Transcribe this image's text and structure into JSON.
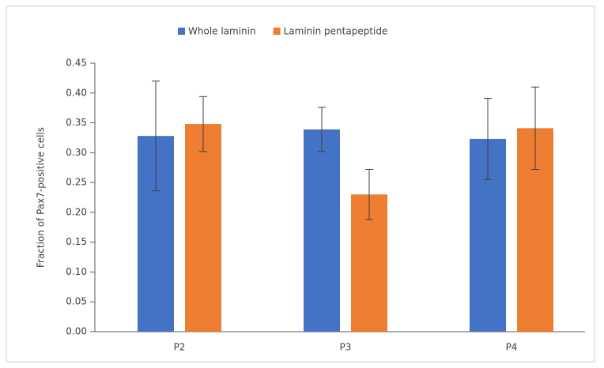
{
  "chart_data": {
    "type": "bar",
    "categories": [
      "P2",
      "P3",
      "P4"
    ],
    "series": [
      {
        "name": "Whole laminin",
        "color": "#4472c4",
        "values": [
          0.328,
          0.339,
          0.323
        ],
        "errors": [
          0.092,
          0.037,
          0.068
        ]
      },
      {
        "name": "Laminin pentapeptide",
        "color": "#ed7d31",
        "values": [
          0.348,
          0.23,
          0.341
        ],
        "errors": [
          0.046,
          0.042,
          0.069
        ]
      }
    ],
    "y_label": "Fraction of Pax7-positive cells",
    "ylim": [
      0,
      0.45
    ],
    "yticks": [
      {
        "value": 0,
        "label": "0.00"
      },
      {
        "value": 0.05,
        "label": "0.05"
      },
      {
        "value": 0.1,
        "label": "0.10"
      },
      {
        "value": 0.15,
        "label": "0.15"
      },
      {
        "value": 0.2,
        "label": "0.20"
      },
      {
        "value": 0.25,
        "label": "0.25"
      },
      {
        "value": 0.3,
        "label": "0.30"
      },
      {
        "value": 0.35,
        "label": "0.35"
      },
      {
        "value": 0.4,
        "label": "0.40"
      },
      {
        "value": 0.45,
        "label": "0.45"
      }
    ],
    "legend": "top",
    "grid": false
  }
}
